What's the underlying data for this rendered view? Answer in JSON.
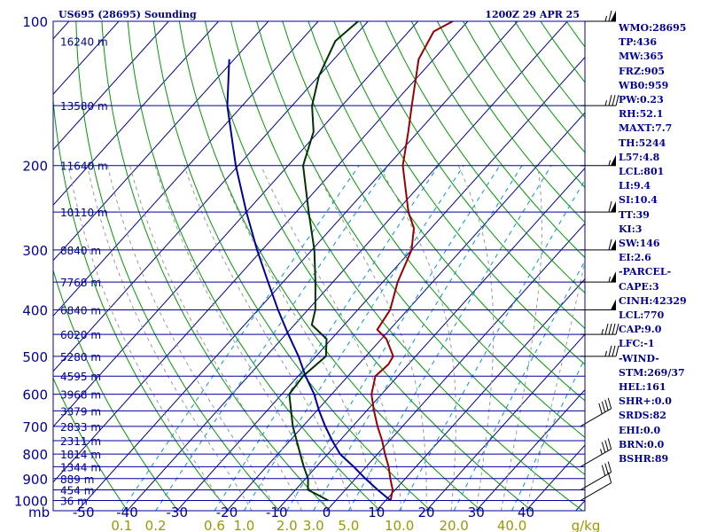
{
  "header": {
    "station": "US695 (28695) Sounding",
    "time": "1200Z 29 APR 25"
  },
  "indices": [
    "WMO:28695",
    "TP:436",
    "MW:365",
    "FRZ:905",
    "WB0:959",
    "PW:0.23",
    "RH:52.1",
    "MAXT:7.7",
    "TH:5244",
    "L57:4.8",
    "LCL:801",
    "LI:9.4",
    "SI:10.4",
    "TT:39",
    "KI:3",
    "SW:146",
    "EI:2.6",
    "-PARCEL-",
    "CAPE:3",
    "CINH:42329",
    "LCL:770",
    "CAP:9.0",
    "LFC:-1",
    "-WIND-",
    "STM:269/37",
    "HEL:161",
    "SHR+:0.0",
    "SRDS:82",
    "EHI:0.0",
    "BRN:0.0",
    "BSHR:89"
  ],
  "chart_data": {
    "type": "line",
    "title": "US695 (28695) Sounding",
    "subtitle": "1200Z 29 APR 25",
    "y_axis": {
      "label": "mb",
      "scale": "log",
      "range": [
        1050,
        100
      ],
      "ticks": [
        100,
        200,
        300,
        400,
        500,
        600,
        700,
        800,
        900,
        1000
      ]
    },
    "x_axis": {
      "unit": "°C",
      "range": [
        -50,
        50
      ],
      "ticks": [
        -50,
        -40,
        -30,
        -20,
        -10,
        0,
        10,
        20,
        30,
        40
      ],
      "tick_labels": [
        "-50",
        "-40",
        "-30",
        "-20",
        "-10",
        "0",
        "10",
        "20",
        "30",
        "40"
      ]
    },
    "mixing_ratio_axis": {
      "label": "g/kg",
      "values": [
        0.1,
        0.2,
        0.6,
        1.0,
        2.0,
        3.0,
        5.0,
        10.0,
        20.0,
        40.0
      ],
      "tick_labels": [
        "0.1",
        "0.2",
        "0.6",
        "1.0",
        "2.0",
        "3.0",
        "5.0",
        "10.0",
        "20.0",
        "40.0"
      ]
    },
    "height_labels": [
      {
        "p": 110,
        "label": "16240 m"
      },
      {
        "p": 150,
        "label": "13580 m"
      },
      {
        "p": 200,
        "label": "11640 m"
      },
      {
        "p": 250,
        "label": "10110 m"
      },
      {
        "p": 300,
        "label": "8840 m"
      },
      {
        "p": 350,
        "label": "7768 m"
      },
      {
        "p": 400,
        "label": "6840 m"
      },
      {
        "p": 450,
        "label": "6020 m"
      },
      {
        "p": 500,
        "label": "5280 m"
      },
      {
        "p": 550,
        "label": "4595 m"
      },
      {
        "p": 600,
        "label": "3968 m"
      },
      {
        "p": 650,
        "label": "3379 m"
      },
      {
        "p": 700,
        "label": "2833 m"
      },
      {
        "p": 750,
        "label": "2311 m"
      },
      {
        "p": 800,
        "label": "1814 m"
      },
      {
        "p": 850,
        "label": "1344 m"
      },
      {
        "p": 900,
        "label": "889 m"
      },
      {
        "p": 950,
        "label": "454 m"
      },
      {
        "p": 1000,
        "label": "36 m"
      }
    ],
    "isobars": [
      100,
      150,
      200,
      250,
      300,
      350,
      400,
      450,
      500,
      550,
      600,
      650,
      700,
      750,
      800,
      850,
      900,
      950,
      1000
    ],
    "series": [
      {
        "key": "temperature",
        "color": "#990000",
        "points": [
          {
            "p": 1000,
            "t": 11.0
          },
          {
            "p": 950,
            "t": 9.5
          },
          {
            "p": 900,
            "t": 7.0
          },
          {
            "p": 850,
            "t": 4.5
          },
          {
            "p": 800,
            "t": 1.5
          },
          {
            "p": 750,
            "t": -1.5
          },
          {
            "p": 700,
            "t": -5.0
          },
          {
            "p": 650,
            "t": -8.5
          },
          {
            "p": 600,
            "t": -12.0
          },
          {
            "p": 550,
            "t": -14.5
          },
          {
            "p": 520,
            "t": -14.0
          },
          {
            "p": 500,
            "t": -14.5
          },
          {
            "p": 460,
            "t": -19.0
          },
          {
            "p": 440,
            "t": -22.5
          },
          {
            "p": 400,
            "t": -23.5
          },
          {
            "p": 350,
            "t": -27.0
          },
          {
            "p": 300,
            "t": -30.0
          },
          {
            "p": 270,
            "t": -33.5
          },
          {
            "p": 250,
            "t": -37.5
          },
          {
            "p": 200,
            "t": -47.0
          },
          {
            "p": 170,
            "t": -52.0
          },
          {
            "p": 150,
            "t": -56.0
          },
          {
            "p": 120,
            "t": -63.0
          },
          {
            "p": 105,
            "t": -65.0
          },
          {
            "p": 100,
            "t": -63.0
          }
        ]
      },
      {
        "key": "dewpoint",
        "color": "#003300",
        "points": [
          {
            "p": 1000,
            "t": -1.5
          },
          {
            "p": 970,
            "t": -5.0
          },
          {
            "p": 950,
            "t": -7.5
          },
          {
            "p": 900,
            "t": -9.5
          },
          {
            "p": 850,
            "t": -12.5
          },
          {
            "p": 800,
            "t": -15.5
          },
          {
            "p": 700,
            "t": -22.0
          },
          {
            "p": 600,
            "t": -28.5
          },
          {
            "p": 550,
            "t": -29.0
          },
          {
            "p": 500,
            "t": -28.0
          },
          {
            "p": 460,
            "t": -31.0
          },
          {
            "p": 430,
            "t": -36.5
          },
          {
            "p": 400,
            "t": -38.5
          },
          {
            "p": 350,
            "t": -43.5
          },
          {
            "p": 300,
            "t": -49.5
          },
          {
            "p": 250,
            "t": -57.5
          },
          {
            "p": 200,
            "t": -67.0
          },
          {
            "p": 170,
            "t": -71.0
          },
          {
            "p": 150,
            "t": -76.0
          },
          {
            "p": 130,
            "t": -80.0
          },
          {
            "p": 110,
            "t": -83.0
          },
          {
            "p": 100,
            "t": -82.0
          }
        ]
      },
      {
        "key": "parcel",
        "color": "#000099",
        "points": [
          {
            "p": 1000,
            "t": 11.0
          },
          {
            "p": 950,
            "t": 6.5
          },
          {
            "p": 900,
            "t": 2.0
          },
          {
            "p": 850,
            "t": -2.5
          },
          {
            "p": 800,
            "t": -7.5
          },
          {
            "p": 750,
            "t": -11.5
          },
          {
            "p": 700,
            "t": -15.5
          },
          {
            "p": 650,
            "t": -19.5
          },
          {
            "p": 600,
            "t": -23.5
          },
          {
            "p": 550,
            "t": -28.5
          },
          {
            "p": 500,
            "t": -33.5
          },
          {
            "p": 450,
            "t": -39.5
          },
          {
            "p": 400,
            "t": -46.0
          },
          {
            "p": 350,
            "t": -53.0
          },
          {
            "p": 300,
            "t": -61.0
          },
          {
            "p": 250,
            "t": -70.0
          },
          {
            "p": 200,
            "t": -80.5
          },
          {
            "p": 150,
            "t": -93.0
          },
          {
            "p": 120,
            "t": -101.0
          }
        ]
      }
    ],
    "wind_barbs": [
      {
        "p": 100,
        "dir": 270,
        "kt": 65
      },
      {
        "p": 150,
        "dir": 270,
        "kt": 35
      },
      {
        "p": 200,
        "dir": 270,
        "kt": 55
      },
      {
        "p": 250,
        "dir": 270,
        "kt": 60
      },
      {
        "p": 300,
        "dir": 270,
        "kt": 60
      },
      {
        "p": 350,
        "dir": 270,
        "kt": 55
      },
      {
        "p": 400,
        "dir": 270,
        "kt": 50
      },
      {
        "p": 450,
        "dir": 270,
        "kt": 45
      },
      {
        "p": 500,
        "dir": 270,
        "kt": 35
      },
      {
        "p": 700,
        "dir": 240,
        "kt": 40
      },
      {
        "p": 850,
        "dir": 240,
        "kt": 35
      },
      {
        "p": 950,
        "dir": 240,
        "kt": 30
      },
      {
        "p": 1000,
        "dir": 240,
        "kt": 10
      }
    ],
    "colors": {
      "frame": "#000099",
      "isotherm": "#000099",
      "dry_adiabat": "#009900",
      "moist_adiabat": "#999999",
      "mixing_ratio": "#0099cc",
      "mixing_ratio_labels": "#999900"
    },
    "grid": true
  }
}
